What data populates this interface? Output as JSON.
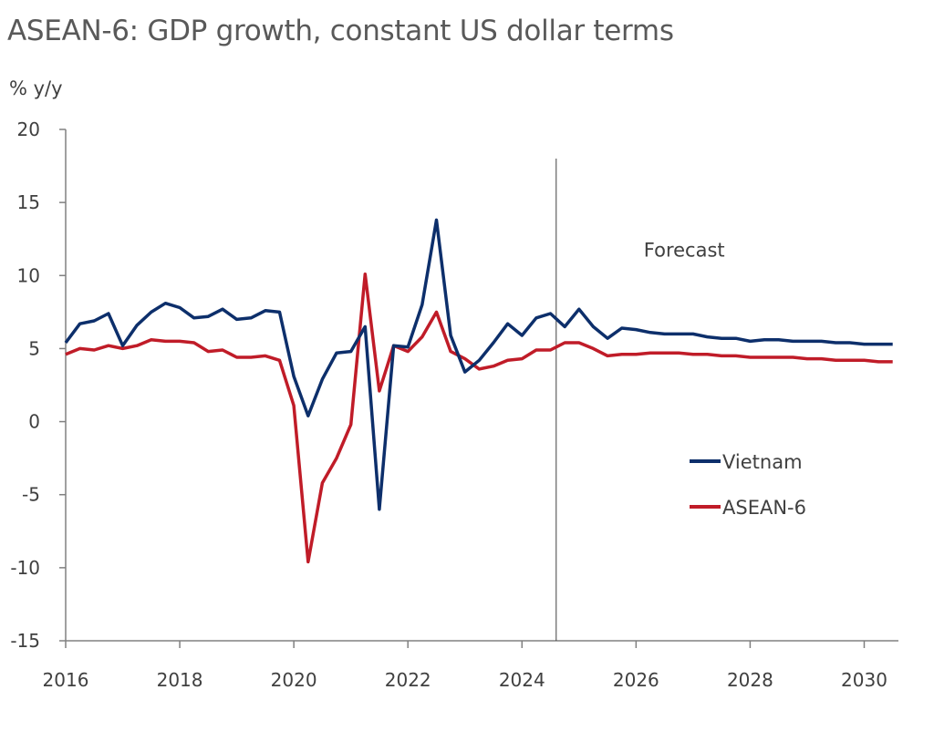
{
  "chart_data": {
    "type": "line",
    "title": "ASEAN-6: GDP growth, constant US dollar terms",
    "ylabel": "% y/y",
    "xlabel": "",
    "ylim": [
      -15,
      20
    ],
    "xlim": [
      2016,
      2030.6
    ],
    "yticks": [
      20,
      15,
      10,
      5,
      0,
      -5,
      -10,
      -15
    ],
    "xticks": [
      2016,
      2018,
      2020,
      2022,
      2024,
      2026,
      2028,
      2030
    ],
    "annotation": {
      "text": "Forecast",
      "x_line": 2024.6
    },
    "legend_position": "right",
    "grid": false,
    "series": [
      {
        "name": "Vietnam",
        "color": "#0d2f6b",
        "x": [
          2016,
          2016.25,
          2016.5,
          2016.75,
          2017,
          2017.25,
          2017.5,
          2017.75,
          2018,
          2018.25,
          2018.5,
          2018.75,
          2019,
          2019.25,
          2019.5,
          2019.75,
          2020,
          2020.25,
          2020.5,
          2020.75,
          2021,
          2021.25,
          2021.5,
          2021.75,
          2022,
          2022.25,
          2022.5,
          2022.75,
          2023,
          2023.25,
          2023.5,
          2023.75,
          2024,
          2024.25,
          2024.5,
          2024.75,
          2025,
          2025.25,
          2025.5,
          2025.75,
          2026,
          2026.25,
          2026.5,
          2026.75,
          2027,
          2027.25,
          2027.5,
          2027.75,
          2028,
          2028.25,
          2028.5,
          2028.75,
          2029,
          2029.25,
          2029.5,
          2029.75,
          2030,
          2030.25,
          2030.5
        ],
        "values": [
          5.4,
          6.7,
          6.9,
          7.4,
          5.2,
          6.6,
          7.5,
          8.1,
          7.8,
          7.1,
          7.2,
          7.7,
          7.0,
          7.1,
          7.6,
          7.5,
          3.1,
          0.4,
          2.9,
          4.7,
          4.8,
          6.5,
          -6.0,
          5.2,
          5.1,
          8.0,
          13.8,
          5.9,
          3.4,
          4.2,
          5.4,
          6.7,
          5.9,
          7.1,
          7.4,
          6.5,
          7.7,
          6.5,
          5.7,
          6.4,
          6.3,
          6.1,
          6.0,
          6.0,
          6.0,
          5.8,
          5.7,
          5.7,
          5.5,
          5.6,
          5.6,
          5.5,
          5.5,
          5.5,
          5.4,
          5.4,
          5.3,
          5.3,
          5.3
        ]
      },
      {
        "name": "ASEAN-6",
        "color": "#c01c28",
        "x": [
          2016,
          2016.25,
          2016.5,
          2016.75,
          2017,
          2017.25,
          2017.5,
          2017.75,
          2018,
          2018.25,
          2018.5,
          2018.75,
          2019,
          2019.25,
          2019.5,
          2019.75,
          2020,
          2020.25,
          2020.5,
          2020.75,
          2021,
          2021.25,
          2021.5,
          2021.75,
          2022,
          2022.25,
          2022.5,
          2022.75,
          2023,
          2023.25,
          2023.5,
          2023.75,
          2024,
          2024.25,
          2024.5,
          2024.75,
          2025,
          2025.25,
          2025.5,
          2025.75,
          2026,
          2026.25,
          2026.5,
          2026.75,
          2027,
          2027.25,
          2027.5,
          2027.75,
          2028,
          2028.25,
          2028.5,
          2028.75,
          2029,
          2029.25,
          2029.5,
          2029.75,
          2030,
          2030.25,
          2030.5
        ],
        "values": [
          4.6,
          5.0,
          4.9,
          5.2,
          5.0,
          5.2,
          5.6,
          5.5,
          5.5,
          5.4,
          4.8,
          4.9,
          4.4,
          4.4,
          4.5,
          4.2,
          1.1,
          -9.6,
          -4.2,
          -2.5,
          -0.2,
          10.1,
          2.1,
          5.2,
          4.8,
          5.8,
          7.5,
          4.8,
          4.3,
          3.6,
          3.8,
          4.2,
          4.3,
          4.9,
          4.9,
          5.4,
          5.4,
          5.0,
          4.5,
          4.6,
          4.6,
          4.7,
          4.7,
          4.7,
          4.6,
          4.6,
          4.5,
          4.5,
          4.4,
          4.4,
          4.4,
          4.4,
          4.3,
          4.3,
          4.2,
          4.2,
          4.2,
          4.1,
          4.1
        ]
      }
    ]
  }
}
